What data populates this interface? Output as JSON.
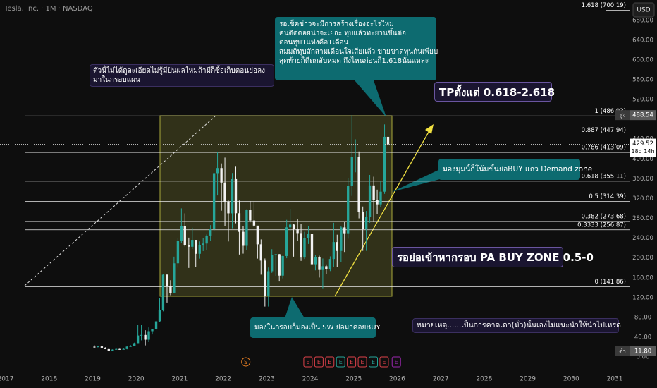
{
  "chart_data": {
    "type": "candlestick",
    "title": "Tesla, Inc. · 1M · NASDAQ",
    "currency": "USD",
    "up_color": "#26a69a",
    "down_color": "#f2f2f2",
    "xlim": [
      2016.87,
      2031.34
    ],
    "xticks": [
      2017,
      2018,
      2019,
      2020,
      2021,
      2022,
      2023,
      2024,
      2025,
      2026,
      2027,
      2028,
      2029,
      2030,
      2031
    ],
    "ylim": [
      -27,
      721
    ],
    "yticks": [
      {
        "value": 0,
        "label": "0.00"
      },
      {
        "value": 40,
        "label": "40.00"
      },
      {
        "value": 80,
        "label": "80.00"
      },
      {
        "value": 120,
        "label": "120.00"
      },
      {
        "value": 160,
        "label": "160.00"
      },
      {
        "value": 200,
        "label": "200.00"
      },
      {
        "value": 240,
        "label": "240.00"
      },
      {
        "value": 280,
        "label": "280.00"
      },
      {
        "value": 320,
        "label": "320.00"
      },
      {
        "value": 360,
        "label": "360.00"
      },
      {
        "value": 400,
        "label": "400.00"
      },
      {
        "value": 440,
        "label": "440.00"
      },
      {
        "value": 520,
        "label": "520.00"
      },
      {
        "value": 560,
        "label": "560.00"
      },
      {
        "value": 600,
        "label": "600.00"
      },
      {
        "value": 640,
        "label": "640.00"
      },
      {
        "value": 680,
        "label": "680.00"
      }
    ],
    "candles": {
      "x": [
        2019.04,
        2019.12,
        2019.21,
        2019.29,
        2019.37,
        2019.46,
        2019.54,
        2019.62,
        2019.71,
        2019.79,
        2019.87,
        2019.96,
        2020.04,
        2020.12,
        2020.21,
        2020.29,
        2020.37,
        2020.46,
        2020.54,
        2020.62,
        2020.71,
        2020.79,
        2020.87,
        2020.96,
        2021.04,
        2021.12,
        2021.21,
        2021.29,
        2021.37,
        2021.46,
        2021.54,
        2021.62,
        2021.71,
        2021.79,
        2021.87,
        2021.96,
        2022.04,
        2022.12,
        2022.21,
        2022.29,
        2022.37,
        2022.46,
        2022.54,
        2022.62,
        2022.71,
        2022.79,
        2022.87,
        2022.96,
        2023.04,
        2023.12,
        2023.21,
        2023.29,
        2023.37,
        2023.46,
        2023.54,
        2023.62,
        2023.71,
        2023.79,
        2023.87,
        2023.96,
        2024.04,
        2024.12,
        2024.21,
        2024.29,
        2024.37,
        2024.46,
        2024.54,
        2024.62,
        2024.71,
        2024.79,
        2024.87,
        2024.96,
        2025.04,
        2025.12,
        2025.21,
        2025.29,
        2025.37,
        2025.46,
        2025.54,
        2025.62,
        2025.71,
        2025.79
      ],
      "open": [
        20.7,
        20.4,
        21.3,
        18.7,
        15.9,
        12.3,
        14.9,
        16.1,
        15.0,
        16.1,
        20.9,
        21.9,
        27.9,
        43.4,
        44.5,
        34.9,
        52.1,
        55.7,
        72.0,
        95.4,
        166.1,
        143.0,
        129.4,
        189.2,
        235.2,
        264.5,
        225.2,
        222.6,
        236.5,
        208.4,
        226.6,
        229.1,
        245.2,
        258.5,
        371.3,
        381.6,
        352.3,
        312.2,
        290.1,
        359.2,
        290.3,
        252.8,
        224.5,
        297.1,
        275.6,
        265.3,
        227.5,
        194.7,
        123.2,
        173.2,
        205.7,
        207.5,
        164.3,
        203.9,
        261.8,
        267.4,
        258.1,
        250.2,
        200.8,
        240.1,
        248.5,
        187.3,
        201.9,
        175.8,
        183.3,
        178.1,
        197.9,
        232.1,
        214.1,
        261.6,
        249.9,
        345.2,
        403.8,
        404.6,
        292.9,
        259.2,
        282.2,
        346.5,
        317.7,
        308.3,
        333.9,
        444.7
      ],
      "high": [
        23.5,
        22.9,
        23.0,
        19.6,
        16.3,
        15.5,
        17.6,
        16.6,
        17.2,
        22.0,
        24.1,
        29.0,
        64.6,
        64.6,
        54.0,
        59.7,
        56.4,
        74.2,
        119.0,
        167.5,
        167.0,
        155.0,
        202.6,
        239.6,
        300.1,
        290.0,
        241.0,
        261.1,
        236.6,
        233.3,
        240.0,
        247.4,
        266.3,
        371.7,
        414.5,
        390.9,
        402.7,
        315.9,
        371.6,
        384.3,
        315.9,
        264.2,
        298.3,
        314.7,
        313.8,
        257.5,
        237.4,
        198.9,
        180.7,
        217.7,
        207.8,
        208.0,
        204.5,
        276.9,
        299.3,
        268.0,
        278.9,
        268.9,
        252.8,
        265.1,
        251.3,
        205.6,
        204.5,
        198.9,
        187.0,
        203.2,
        271.0,
        247.0,
        264.9,
        273.5,
        361.9,
        488.54,
        439.7,
        415.0,
        303.9,
        294.9,
        367.7,
        364.1,
        338.0,
        356.0,
        469.8,
        470.7
      ],
      "low": [
        17.9,
        19.3,
        17.7,
        15.7,
        11.8,
        11.9,
        14.5,
        14.4,
        14.9,
        15.4,
        20.4,
        21.6,
        27.9,
        33.7,
        23.4,
        30.0,
        45.5,
        53.6,
        70.1,
        92.2,
        109.9,
        124.7,
        129.3,
        180.4,
        230.4,
        223.3,
        179.8,
        218.1,
        182.3,
        198.6,
        213.9,
        216.3,
        234.4,
        254.5,
        326.2,
        295.4,
        264.0,
        233.3,
        260.0,
        270.0,
        206.9,
        208.7,
        216.2,
        271.8,
        262.5,
        198.6,
        166.2,
        101.8,
        101.8,
        169.9,
        163.9,
        152.4,
        158.8,
        199.4,
        254.1,
        202.6,
        234.6,
        194.1,
        197.9,
        228.2,
        180.1,
        175.0,
        160.5,
        138.8,
        167.4,
        173.5,
        182.0,
        182.0,
        191.8,
        212.1,
        238.9,
        325.4,
        373.0,
        280.0,
        214.3,
        214.3,
        271.0,
        273.2,
        288.8,
        302.2,
        329.5,
        413.5
      ],
      "close": [
        20.4,
        21.3,
        18.7,
        15.9,
        12.3,
        14.9,
        16.1,
        15.0,
        16.1,
        20.9,
        21.9,
        27.9,
        43.4,
        44.5,
        34.9,
        52.1,
        55.7,
        72.0,
        95.4,
        166.1,
        143.0,
        129.4,
        189.2,
        235.2,
        264.5,
        225.2,
        222.6,
        236.5,
        208.4,
        226.6,
        229.1,
        245.2,
        258.5,
        371.3,
        381.6,
        352.3,
        312.2,
        290.1,
        359.2,
        290.3,
        252.8,
        224.5,
        297.1,
        275.6,
        265.3,
        227.5,
        194.7,
        123.2,
        173.2,
        205.7,
        207.5,
        164.3,
        203.9,
        261.8,
        267.4,
        258.1,
        250.2,
        200.8,
        240.1,
        248.5,
        187.3,
        201.9,
        175.8,
        183.3,
        178.1,
        197.9,
        232.1,
        214.1,
        261.6,
        249.9,
        345.2,
        403.8,
        404.6,
        292.9,
        259.2,
        282.2,
        346.5,
        317.7,
        308.3,
        333.9,
        444.7,
        429.52
      ]
    },
    "fib_levels": [
      {
        "value": 700.19,
        "label": "1.618 (700.19)"
      },
      {
        "value": 486.93,
        "label": "1 (486.93)"
      },
      {
        "value": 447.94,
        "label": "0.887 (447.94)"
      },
      {
        "value": 413.09,
        "label": "0.786 (413.09)"
      },
      {
        "value": 355.11,
        "label": "0.618 (355.11)"
      },
      {
        "value": 314.39,
        "label": "0.5 (314.39)"
      },
      {
        "value": 273.68,
        "label": "0.382 (273.68)"
      },
      {
        "value": 256.87,
        "label": "0.3333 (256.87)"
      },
      {
        "value": 141.86,
        "label": "0 (141.86)"
      }
    ],
    "price_labels": [
      {
        "value": 488.54,
        "tag": "สูง"
      },
      {
        "value": 429.52,
        "sub": "18d 14h"
      },
      {
        "value": 11.8,
        "label": "11.80",
        "tag": "ต่ำ"
      }
    ],
    "events": [
      {
        "label": "S",
        "x": 2022.52,
        "color": "#e67e22"
      },
      {
        "label": "E",
        "x": 2023.95,
        "color": "#e0424b"
      },
      {
        "label": "E",
        "x": 2024.2,
        "color": "#e0424b"
      },
      {
        "label": "E",
        "x": 2024.45,
        "color": "#e0424b"
      },
      {
        "label": "E",
        "x": 2024.7,
        "color": "#26a69a"
      },
      {
        "label": "E",
        "x": 2024.95,
        "color": "#e0424b"
      },
      {
        "label": "E",
        "x": 2025.2,
        "color": "#e0424b"
      },
      {
        "label": "E",
        "x": 2025.45,
        "color": "#26a69a"
      },
      {
        "label": "E",
        "x": 2025.7,
        "color": "#e0424b"
      },
      {
        "label": "E",
        "x": 2025.98,
        "color": "#9c27b0"
      }
    ],
    "annotations": [
      {
        "lines": [
          "รอเช็คข่าวจะมีการสร้างเรื่องอะไรใหม่",
          "คนติดดอยน่าจะเยอะ ทุบแล้วทะยานขึ้นต่อ",
          "ตอนทุบ1แท่งคือ1เดือน",
          "สมมติทุบสักสามเดือนใจเสียแล้ว ขายขาดทุนกันเพียบ",
          "สุดท้ายก็ดีดกลับหมด ถึงไหนก่อนก็1.618นั่นแหละ"
        ]
      },
      {
        "lines": [
          "ตัวนี้ไม่ได้ดูละเอียดไม่รู้มีปันผลไหมถ้ามีก็ซื้อเก็บตอนย่อลง",
          "มาในกรอบแผน"
        ]
      },
      {
        "lines": [
          "TPตั้งแต่ 0.618-2.618"
        ]
      },
      {
        "lines": [
          "มองมุมนี้ก็โน้มขึ้นย่อBUY แถว Demand zone"
        ]
      },
      {
        "lines": [
          "รอย่อเข้าหากรอบ PA BUY ZONE 0.5-0"
        ]
      },
      {
        "lines": [
          "มองในกรอบก็มองเป็น SW ย่อมาค่อยBUY"
        ]
      },
      {
        "lines": [
          "หมายเหตุ......เป็นการคาดเดา(มั่ว)นั้นเองไม่แนะนำให้นำไปเหรด"
        ]
      }
    ]
  }
}
